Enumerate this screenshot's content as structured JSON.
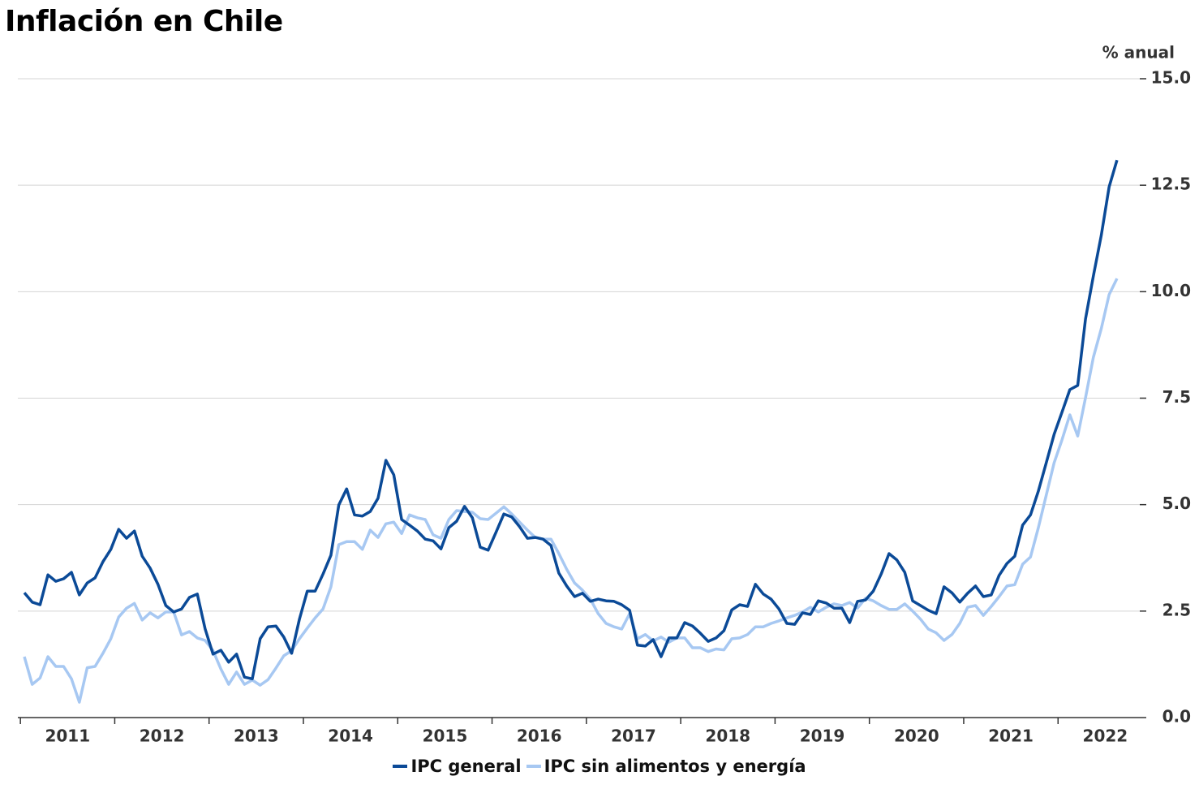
{
  "chart_data": {
    "type": "line",
    "title": "Inflación en Chile",
    "y_axis_label": "% anual",
    "categories": [
      null,
      null,
      null,
      null,
      null,
      "2011",
      null,
      null,
      null,
      null,
      null,
      null,
      null,
      null,
      null,
      null,
      null,
      "2012",
      null,
      null,
      null,
      null,
      null,
      null,
      null,
      null,
      null,
      null,
      null,
      "2013",
      null,
      null,
      null,
      null,
      null,
      null,
      null,
      null,
      null,
      null,
      null,
      "2014",
      null,
      null,
      null,
      null,
      null,
      null,
      null,
      null,
      null,
      null,
      null,
      "2015",
      null,
      null,
      null,
      null,
      null,
      null,
      null,
      null,
      null,
      null,
      null,
      "2016",
      null,
      null,
      null,
      null,
      null,
      null,
      null,
      null,
      null,
      null,
      null,
      "2017",
      null,
      null,
      null,
      null,
      null,
      null,
      null,
      null,
      null,
      null,
      null,
      "2018",
      null,
      null,
      null,
      null,
      null,
      null,
      null,
      null,
      null,
      null,
      null,
      "2019",
      null,
      null,
      null,
      null,
      null,
      null,
      null,
      null,
      null,
      null,
      null,
      "2020",
      null,
      null,
      null,
      null,
      null,
      null,
      null,
      null,
      null,
      null,
      null,
      "2021",
      null,
      null,
      null,
      null,
      null,
      null,
      null,
      null,
      null,
      null,
      null,
      "2022",
      null,
      null
    ],
    "series": [
      {
        "name": "IPC general",
        "color": "#0b4a97",
        "values": [
          2.93,
          2.71,
          2.65,
          3.35,
          3.2,
          3.26,
          3.41,
          2.88,
          3.16,
          3.28,
          3.66,
          3.95,
          4.42,
          4.21,
          4.38,
          3.79,
          3.51,
          3.13,
          2.63,
          2.48,
          2.55,
          2.82,
          2.9,
          2.08,
          1.49,
          1.58,
          1.3,
          1.49,
          0.95,
          0.91,
          1.85,
          2.13,
          2.15,
          1.89,
          1.51,
          2.31,
          2.97,
          2.97,
          3.37,
          3.81,
          4.99,
          5.37,
          4.76,
          4.73,
          4.84,
          5.15,
          6.04,
          5.7,
          4.65,
          4.52,
          4.38,
          4.19,
          4.15,
          3.96,
          4.46,
          4.61,
          4.96,
          4.69,
          4.0,
          3.93,
          4.35,
          4.78,
          4.71,
          4.48,
          4.21,
          4.23,
          4.19,
          4.04,
          3.39,
          3.09,
          2.84,
          2.92,
          2.73,
          2.78,
          2.74,
          2.73,
          2.65,
          2.52,
          1.7,
          1.68,
          1.83,
          1.43,
          1.87,
          1.87,
          2.23,
          2.15,
          1.98,
          1.79,
          1.87,
          2.04,
          2.53,
          2.65,
          2.61,
          3.13,
          2.9,
          2.78,
          2.55,
          2.21,
          2.19,
          2.46,
          2.42,
          2.74,
          2.69,
          2.57,
          2.57,
          2.23,
          2.73,
          2.76,
          2.97,
          3.37,
          3.85,
          3.7,
          3.41,
          2.74,
          2.63,
          2.52,
          2.44,
          3.07,
          2.93,
          2.71,
          2.92,
          3.09,
          2.84,
          2.88,
          3.34,
          3.62,
          3.79,
          4.52,
          4.76,
          5.32,
          5.98,
          6.65,
          7.17,
          7.7,
          7.8,
          9.36,
          10.37,
          11.32,
          12.46,
          13.09
        ]
      },
      {
        "name": "IPC sin alimentos y energía",
        "color": "#a7c8f2",
        "values": [
          1.43,
          0.78,
          0.93,
          1.43,
          1.2,
          1.2,
          0.91,
          0.36,
          1.17,
          1.2,
          1.51,
          1.85,
          2.36,
          2.57,
          2.68,
          2.29,
          2.46,
          2.34,
          2.48,
          2.48,
          1.94,
          2.02,
          1.87,
          1.81,
          1.57,
          1.14,
          0.78,
          1.07,
          0.78,
          0.88,
          0.76,
          0.89,
          1.16,
          1.45,
          1.57,
          1.85,
          2.1,
          2.34,
          2.55,
          3.07,
          4.06,
          4.13,
          4.13,
          3.95,
          4.4,
          4.23,
          4.55,
          4.59,
          4.32,
          4.76,
          4.69,
          4.65,
          4.29,
          4.21,
          4.65,
          4.86,
          4.84,
          4.82,
          4.67,
          4.65,
          4.8,
          4.95,
          4.78,
          4.59,
          4.4,
          4.23,
          4.19,
          4.19,
          3.85,
          3.48,
          3.16,
          2.99,
          2.78,
          2.44,
          2.21,
          2.13,
          2.08,
          2.44,
          1.85,
          1.95,
          1.8,
          1.89,
          1.77,
          1.87,
          1.87,
          1.64,
          1.64,
          1.55,
          1.61,
          1.59,
          1.85,
          1.87,
          1.95,
          2.13,
          2.13,
          2.21,
          2.27,
          2.34,
          2.4,
          2.48,
          2.59,
          2.48,
          2.59,
          2.67,
          2.63,
          2.7,
          2.57,
          2.8,
          2.74,
          2.63,
          2.54,
          2.54,
          2.67,
          2.5,
          2.31,
          2.08,
          1.99,
          1.81,
          1.95,
          2.21,
          2.59,
          2.63,
          2.4,
          2.61,
          2.84,
          3.09,
          3.12,
          3.6,
          3.77,
          4.46,
          5.22,
          5.98,
          6.52,
          7.11,
          6.61,
          7.51,
          8.46,
          9.13,
          9.93,
          10.31
        ]
      }
    ],
    "ylim": [
      0,
      15
    ],
    "yticks": [
      {
        "value": 0,
        "label": "0.0"
      },
      {
        "value": 2.5,
        "label": "2.5"
      },
      {
        "value": 5,
        "label": "5.0"
      },
      {
        "value": 7.5,
        "label": "7.5"
      },
      {
        "value": 10,
        "label": "10.0"
      },
      {
        "value": 12.5,
        "label": "12.5"
      },
      {
        "value": 15,
        "label": "15.0"
      }
    ],
    "grid": true,
    "legend": "bottom"
  }
}
